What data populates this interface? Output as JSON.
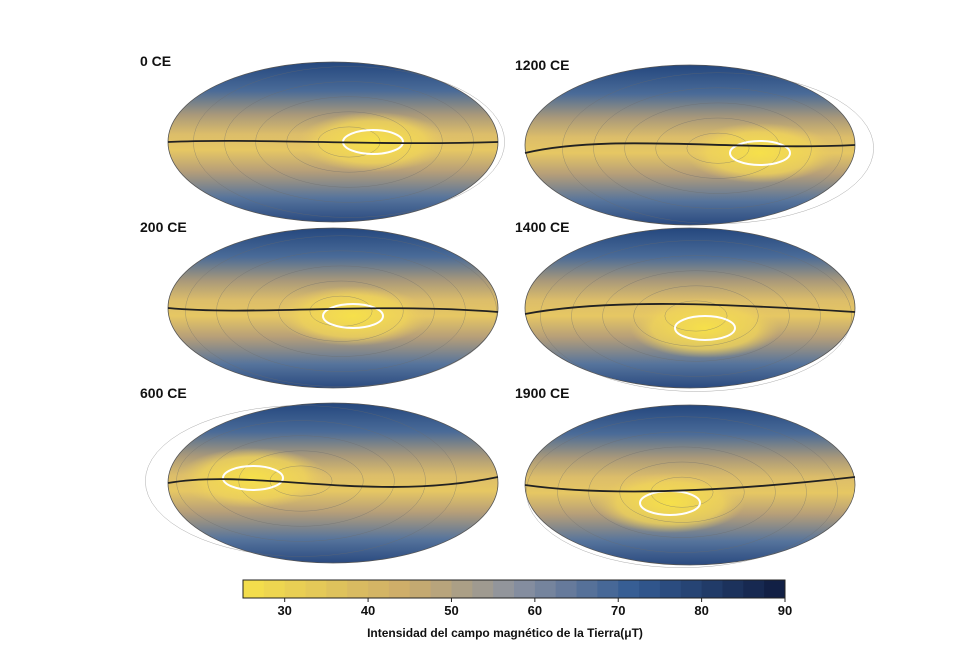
{
  "panels": [
    {
      "label": "0 CE"
    },
    {
      "label": "1200 CE"
    },
    {
      "label": "200 CE"
    },
    {
      "label": "1400 CE"
    },
    {
      "label": "600 CE"
    },
    {
      "label": "1900 CE"
    }
  ],
  "colorbar": {
    "min": 25,
    "max": 90,
    "step": 2.5,
    "ticks": [
      30,
      40,
      50,
      60,
      70,
      80,
      90
    ],
    "label": "Intensidad del campo magnético de la Tierra(μT)"
  }
}
